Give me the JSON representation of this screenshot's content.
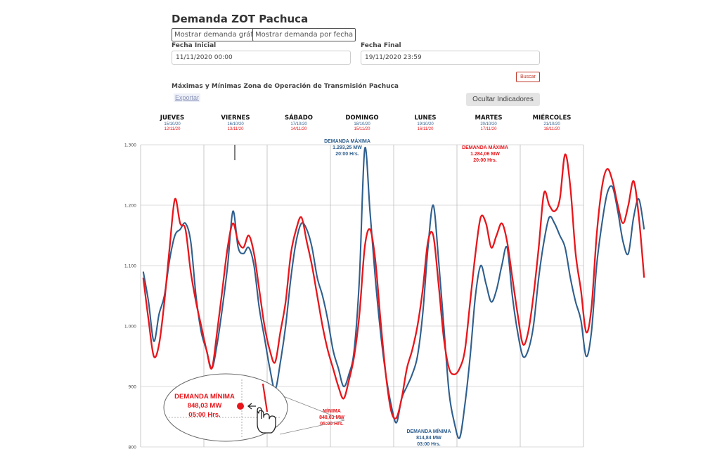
{
  "page": {
    "title": "Demanda ZOT Pachuca",
    "btn_chart": "Mostrar demanda gráfica",
    "btn_date": "Mostrar demanda por fecha",
    "label_start": "Fecha Inicial",
    "value_start": "11/11/2020 00:00",
    "label_end": "Fecha Final",
    "value_end": "19/11/2020 23:59",
    "search": "Buscar",
    "section_title": "Máximas y Mínimas Zona de Operación de Transmisión Pachuca",
    "export": "Exportar",
    "hide_indicators": "Ocultar Indicadores"
  },
  "chart_data": {
    "type": "line",
    "colors": {
      "blue": "#2f5f8e",
      "red": "#e8161b",
      "grid": "#cfcfcf"
    },
    "ylim": [
      800,
      1300
    ],
    "yticks": [
      "800",
      "900",
      "1.000",
      "1.100",
      "1.200",
      "1.300"
    ],
    "days": [
      {
        "name": "JUEVES",
        "blue_date": "15/10/20",
        "red_date": "12/11/20"
      },
      {
        "name": "VIERNES",
        "blue_date": "16/10/20",
        "red_date": "13/11/20"
      },
      {
        "name": "SÁBADO",
        "blue_date": "17/10/20",
        "red_date": "14/11/20"
      },
      {
        "name": "DOMINGO",
        "blue_date": "18/10/20",
        "red_date": "15/11/20"
      },
      {
        "name": "LUNES",
        "blue_date": "19/10/20",
        "red_date": "16/11/20"
      },
      {
        "name": "MARTES",
        "blue_date": "20/10/20",
        "red_date": "17/11/20"
      },
      {
        "name": "MIÉRCOLES",
        "blue_date": "21/10/20",
        "red_date": "18/11/20"
      }
    ],
    "hours_per_point": 2,
    "series": [
      {
        "color": "blue",
        "values": [
          1090,
          1040,
          975,
          1020,
          1050,
          1110,
          1150,
          1160,
          1170,
          1140,
          1050,
          990,
          960,
          930,
          970,
          1030,
          1100,
          1190,
          1130,
          1120,
          1130,
          1100,
          1030,
          980,
          930,
          895,
          940,
          1000,
          1080,
          1140,
          1170,
          1160,
          1130,
          1080,
          1050,
          1010,
          960,
          930,
          900,
          920,
          960,
          1080,
          1293,
          1190,
          1080,
          990,
          920,
          870,
          840,
          880,
          900,
          920,
          950,
          1020,
          1130,
          1200,
          1110,
          1000,
          890,
          840,
          815,
          870,
          950,
          1050,
          1100,
          1070,
          1040,
          1060,
          1100,
          1130,
          1050,
          990,
          950,
          960,
          1000,
          1080,
          1140,
          1180,
          1170,
          1150,
          1130,
          1080,
          1040,
          1010,
          950,
          990,
          1100,
          1170,
          1220,
          1230,
          1190,
          1140,
          1120,
          1180,
          1210,
          1160
        ]
      },
      {
        "color": "red",
        "values": [
          1080,
          1010,
          950,
          970,
          1040,
          1130,
          1210,
          1170,
          1160,
          1090,
          1040,
          1000,
          960,
          930,
          990,
          1060,
          1130,
          1170,
          1140,
          1130,
          1150,
          1120,
          1060,
          1000,
          960,
          940,
          990,
          1040,
          1120,
          1160,
          1180,
          1140,
          1100,
          1050,
          1000,
          960,
          930,
          900,
          880,
          910,
          950,
          1020,
          1130,
          1160,
          1110,
          1010,
          920,
          860,
          848,
          880,
          930,
          960,
          1000,
          1060,
          1140,
          1150,
          1070,
          980,
          930,
          920,
          930,
          960,
          1040,
          1120,
          1180,
          1170,
          1130,
          1150,
          1170,
          1140,
          1080,
          1020,
          970,
          990,
          1050,
          1130,
          1220,
          1200,
          1190,
          1210,
          1284,
          1230,
          1120,
          1060,
          990,
          1030,
          1150,
          1230,
          1260,
          1240,
          1200,
          1170,
          1200,
          1240,
          1180,
          1080
        ]
      }
    ],
    "annotations": [
      {
        "color": "blue",
        "label": "DEMANDA MÁXIMA",
        "value": "1.293,25 MW",
        "time": "20:00 Hrs."
      },
      {
        "color": "red",
        "label": "DEMANDA MÁXIMA",
        "value": "1.284,06 MW",
        "time": "20:00 Hrs."
      },
      {
        "color": "blue",
        "label": "DEMANDA MÍNIMA",
        "value": "814,84 MW",
        "time": "03:00 Hrs."
      },
      {
        "color": "red",
        "label": "MÍNIMA",
        "value": "848,03 MW",
        "time": "05:00 Hrs."
      }
    ],
    "callout": {
      "label": "DEMANDA MÍNIMA",
      "value": "848,03 MW",
      "time": "05:00 Hrs."
    }
  }
}
